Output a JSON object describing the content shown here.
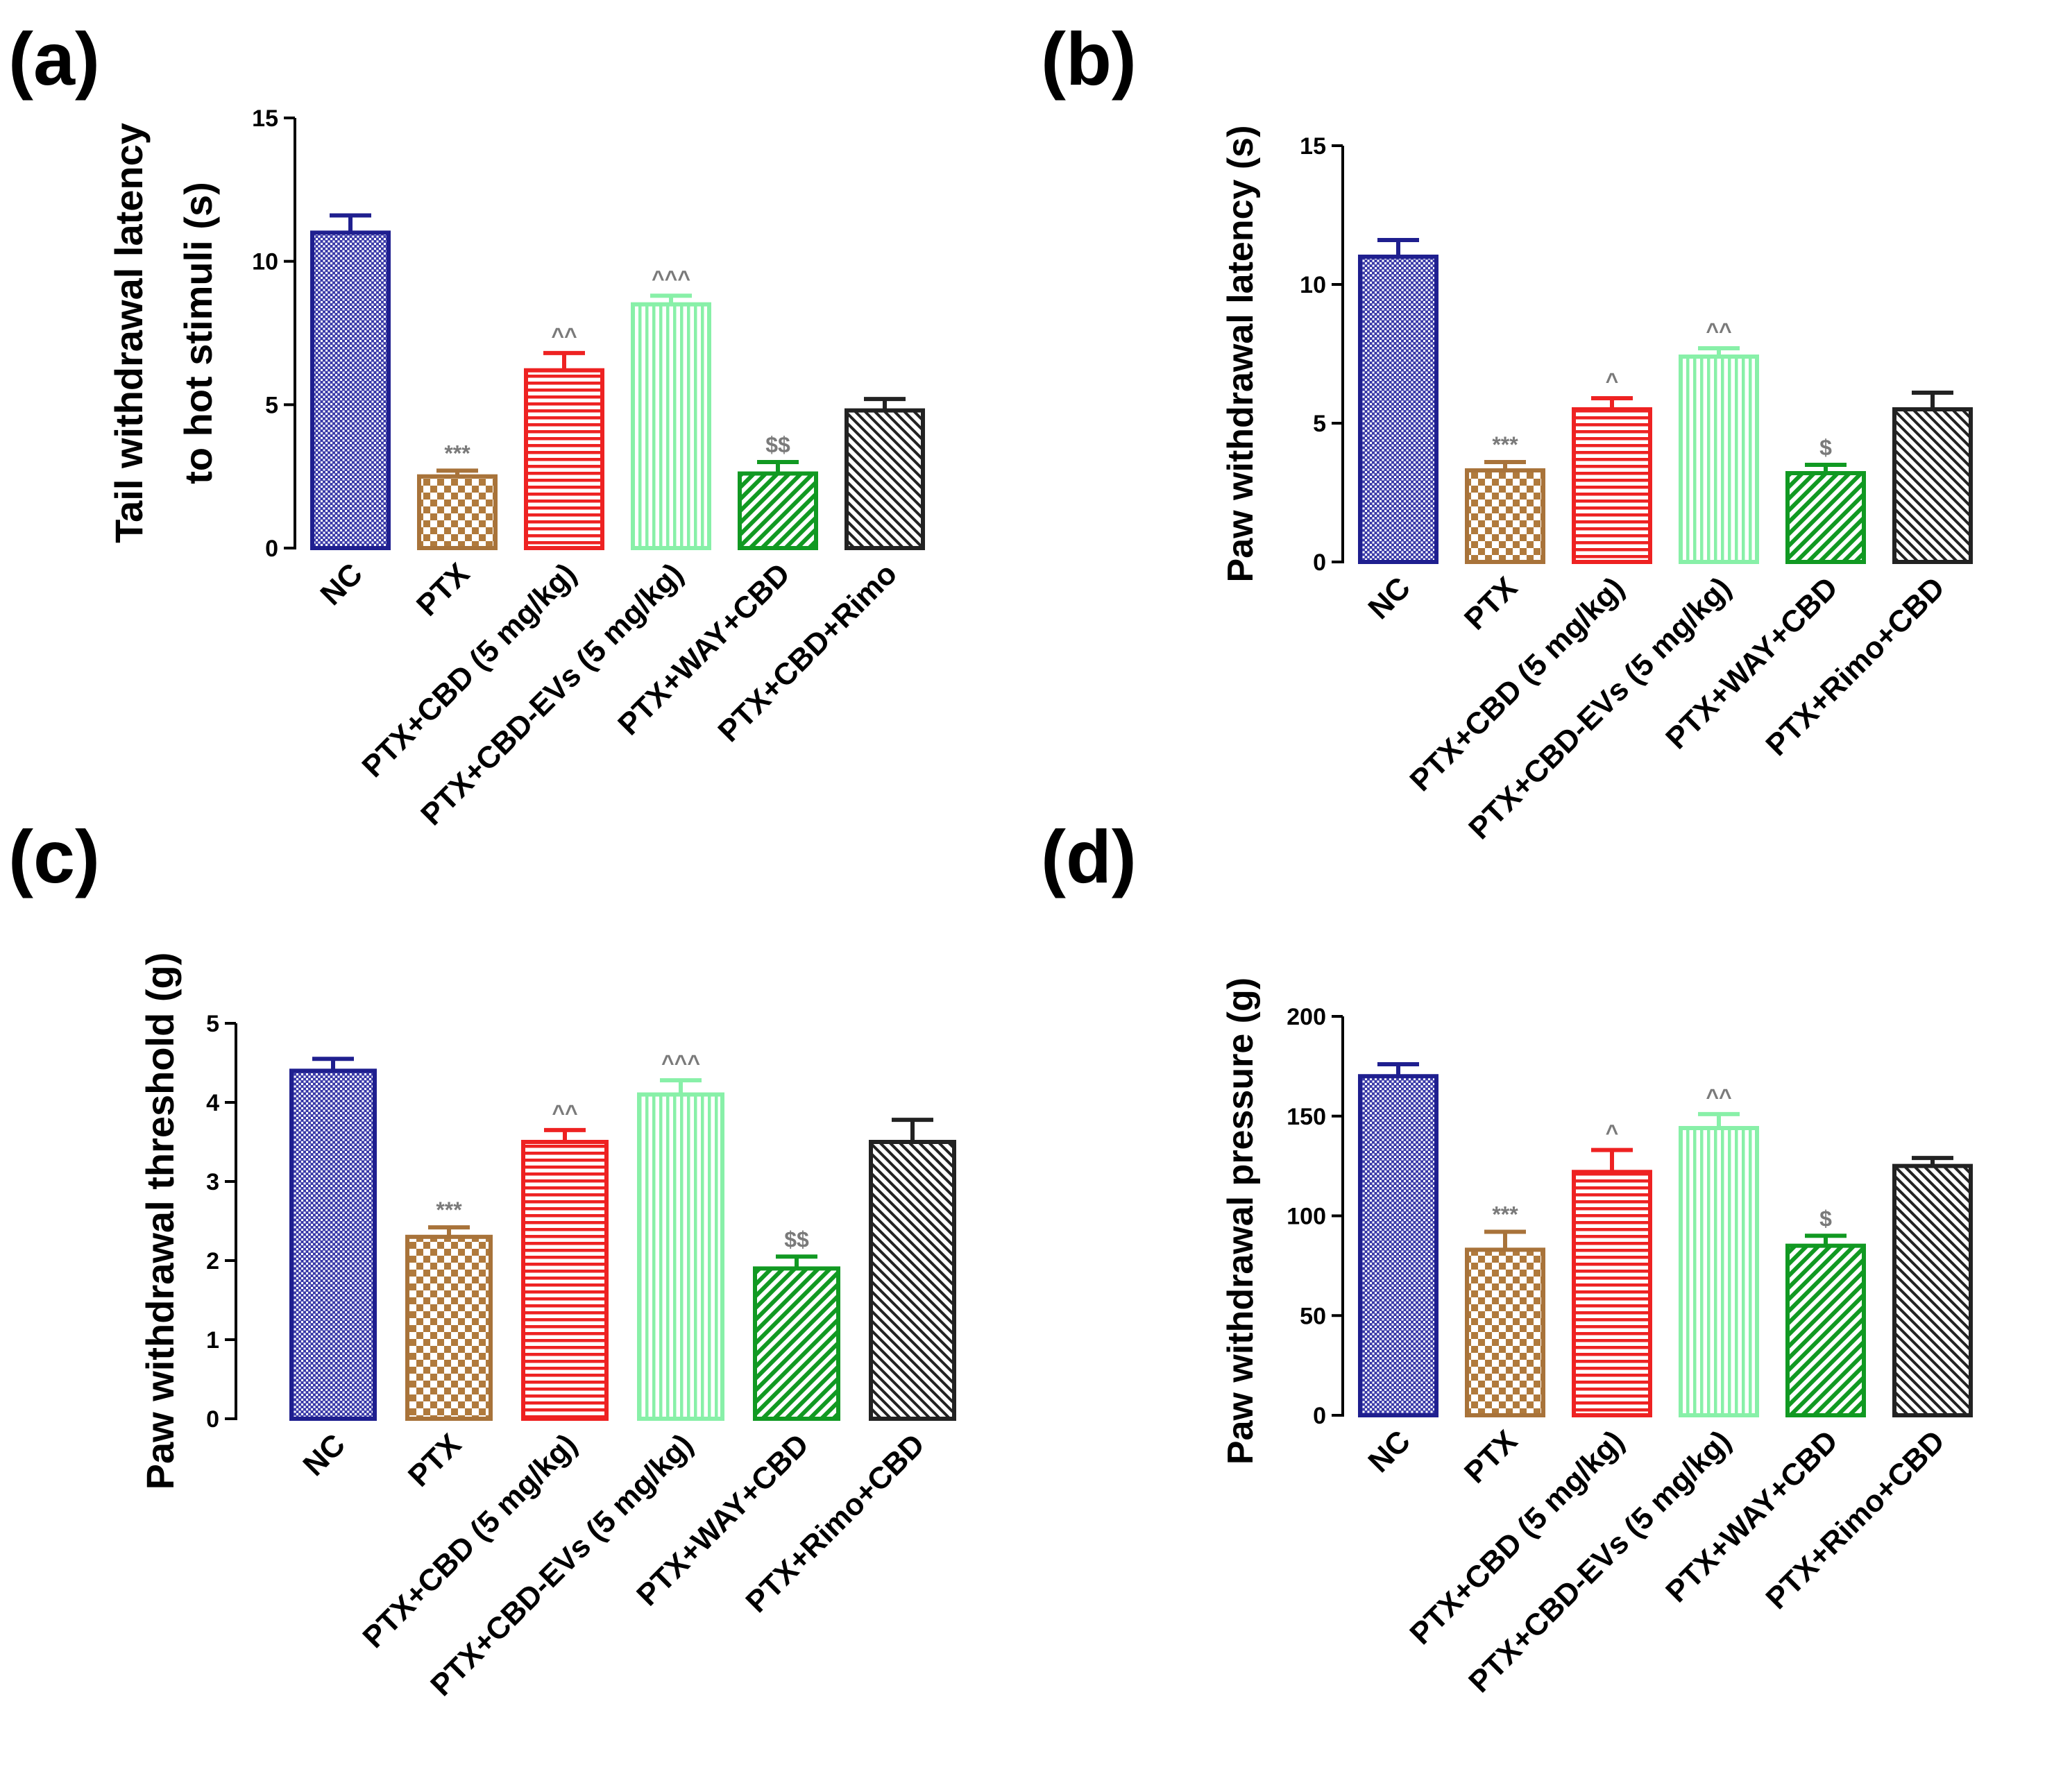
{
  "colors": {
    "NC": "#1f1f8f",
    "PTX": "#a8733a",
    "CBD": "#ee2222",
    "EVs": "#88f0a8",
    "WAY": "#119922",
    "Rimo": "#222222"
  },
  "chart_data": [
    {
      "type": "bar",
      "panel_label": "(a)",
      "ylabel_lines": [
        "Tail withdrawal latency",
        "to hot stimuli (s)"
      ],
      "ylim": [
        0,
        15
      ],
      "yticks": [
        0,
        5,
        10,
        15
      ],
      "categories": [
        "NC",
        "PTX",
        "PTX+CBD (5 mg/kg)",
        "PTX+CBD-EVs (5 mg/kg)",
        "PTX+WAY+CBD",
        "PTX+CBD+Rimo"
      ],
      "values": [
        11.0,
        2.5,
        6.2,
        8.5,
        2.6,
        4.8
      ],
      "errors": [
        0.6,
        0.2,
        0.6,
        0.3,
        0.4,
        0.4
      ],
      "annotations": [
        "",
        "***",
        "^^",
        "^^^",
        "$$",
        ""
      ]
    },
    {
      "type": "bar",
      "panel_label": "(b)",
      "ylabel_lines": [
        "Paw withdrawal latency (s)"
      ],
      "ylim": [
        0,
        15
      ],
      "yticks": [
        0,
        5,
        10,
        15
      ],
      "categories": [
        "NC",
        "PTX",
        "PTX+CBD (5 mg/kg)",
        "PTX+CBD-EVs (5 mg/kg)",
        "PTX+WAY+CBD",
        "PTX+Rimo+CBD"
      ],
      "values": [
        11.0,
        3.3,
        5.5,
        7.4,
        3.2,
        5.5
      ],
      "errors": [
        0.6,
        0.3,
        0.4,
        0.3,
        0.3,
        0.6
      ],
      "annotations": [
        "",
        "***",
        "^",
        "^^",
        "$",
        ""
      ]
    },
    {
      "type": "bar",
      "panel_label": "(c)",
      "ylabel_lines": [
        "Paw withdrawal threshold (g)"
      ],
      "ylim": [
        0,
        5
      ],
      "yticks": [
        0,
        1,
        2,
        3,
        4,
        5
      ],
      "categories": [
        "NC",
        "PTX",
        "PTX+CBD (5 mg/kg)",
        "PTX+CBD-EVs (5 mg/kg)",
        "PTX+WAY+CBD",
        "PTX+Rimo+CBD"
      ],
      "values": [
        4.4,
        2.3,
        3.5,
        4.1,
        1.9,
        3.5
      ],
      "errors": [
        0.15,
        0.12,
        0.15,
        0.18,
        0.15,
        0.28
      ],
      "annotations": [
        "",
        "***",
        "^^",
        "^^^",
        "$$",
        ""
      ]
    },
    {
      "type": "bar",
      "panel_label": "(d)",
      "ylabel_lines": [
        "Paw withdrawal pressure (g)"
      ],
      "ylim": [
        0,
        200
      ],
      "yticks": [
        0,
        50,
        100,
        150,
        200
      ],
      "categories": [
        "NC",
        "PTX",
        "PTX+CBD (5 mg/kg)",
        "PTX+CBD-EVs (5 mg/kg)",
        "PTX+WAY+CBD",
        "PTX+Rimo+CBD"
      ],
      "values": [
        170,
        83,
        122,
        144,
        85,
        125
      ],
      "errors": [
        6,
        9,
        11,
        7,
        5,
        4
      ],
      "annotations": [
        "",
        "***",
        "^",
        "^^",
        "$",
        ""
      ]
    }
  ]
}
